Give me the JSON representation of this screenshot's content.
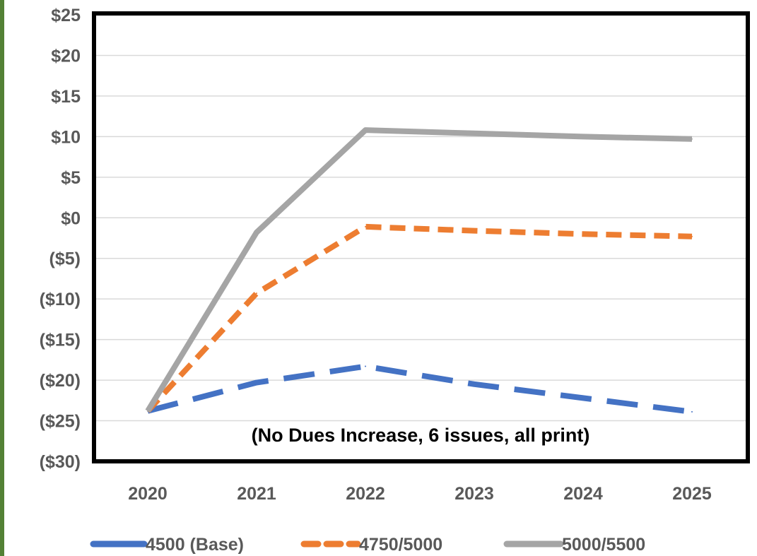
{
  "chart_data": {
    "type": "line",
    "categories": [
      "2020",
      "2021",
      "2022",
      "2023",
      "2024",
      "2025"
    ],
    "series": [
      {
        "name": "4500 (Base)",
        "values": [
          -23.8,
          -20.3,
          -18.3,
          -20.5,
          -22.2,
          -23.9
        ],
        "color": "#4472C4",
        "style": "long-dash"
      },
      {
        "name": "4750/5000",
        "values": [
          -23.8,
          -9.3,
          -1.1,
          -1.6,
          -2.0,
          -2.3
        ],
        "color": "#ED7D31",
        "style": "dash"
      },
      {
        "name": "5000/5500",
        "values": [
          -23.8,
          -1.8,
          10.8,
          10.4,
          10.0,
          9.7
        ],
        "color": "#A5A5A5",
        "style": "solid"
      }
    ],
    "y_ticks": [
      "$25",
      "$20",
      "$15",
      "$10",
      "$5",
      "$0",
      "($5)",
      "($10)",
      "($15)",
      "($20)",
      "($25)",
      "($30)"
    ],
    "ylim": [
      -30,
      25
    ],
    "annotation": "(No Dues Increase, 6 issues, all print)",
    "grid": true,
    "legend_position": "bottom"
  }
}
